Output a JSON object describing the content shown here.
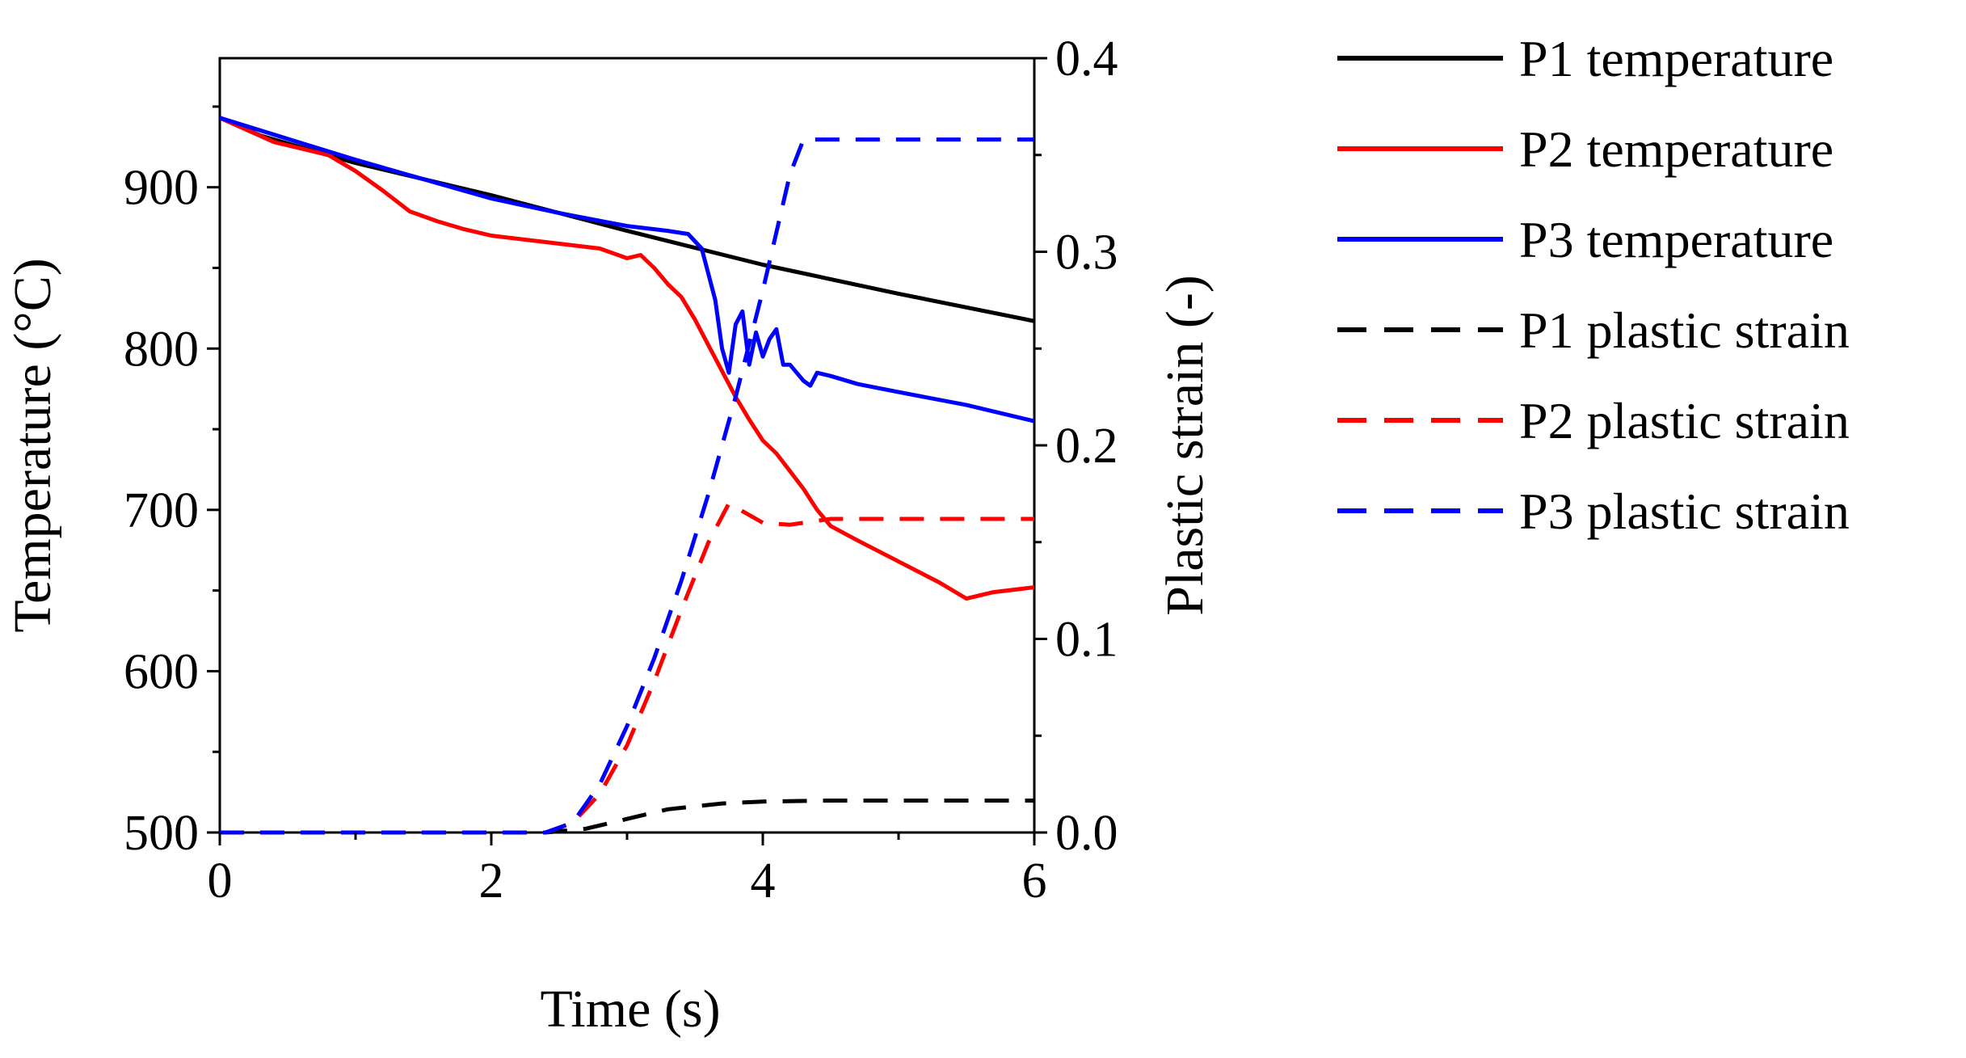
{
  "chart_data": {
    "type": "line",
    "title": "",
    "xlabel": "Time (s)",
    "ylabel": "Temperature (°C)",
    "y2label": "Plastic strain (-)",
    "xlim": [
      0,
      6
    ],
    "ylim": [
      500,
      980
    ],
    "y2lim": [
      0,
      0.4
    ],
    "xticks": [
      0,
      2,
      4,
      6
    ],
    "xtick_labels": [
      "0",
      "2",
      "4",
      "6"
    ],
    "yticks": [
      500,
      600,
      700,
      800,
      900
    ],
    "ytick_labels": [
      "500",
      "600",
      "700",
      "800",
      "900"
    ],
    "y2ticks": [
      0,
      0.1,
      0.2,
      0.3,
      0.4
    ],
    "y2tick_labels": [
      "0.0",
      "0.1",
      "0.2",
      "0.3",
      "0.4"
    ],
    "legend_position": "outside-right",
    "series": [
      {
        "name": "P1 temperature",
        "axis": "left",
        "color": "#000000",
        "dash": "solid",
        "x": [
          0,
          0.3,
          1,
          2,
          3,
          4,
          5,
          6
        ],
        "y": [
          943,
          932,
          915,
          895,
          873,
          852,
          834,
          817
        ]
      },
      {
        "name": "P2 temperature",
        "axis": "left",
        "color": "#ff0000",
        "dash": "solid",
        "x": [
          0,
          0.4,
          0.8,
          1.0,
          1.2,
          1.4,
          1.6,
          1.8,
          2.0,
          2.4,
          2.8,
          3.0,
          3.1,
          3.2,
          3.3,
          3.4,
          3.5,
          3.6,
          3.7,
          3.8,
          3.9,
          4.0,
          4.1,
          4.2,
          4.3,
          4.4,
          4.5,
          4.7,
          5.0,
          5.3,
          5.5,
          5.7,
          6.0
        ],
        "y": [
          943,
          928,
          920,
          910,
          898,
          885,
          879,
          874,
          870,
          866,
          862,
          856,
          858,
          850,
          840,
          832,
          818,
          802,
          786,
          770,
          756,
          743,
          735,
          724,
          713,
          700,
          690,
          681,
          668,
          655,
          645,
          649,
          652
        ]
      },
      {
        "name": "P3 temperature",
        "axis": "left",
        "color": "#0000ff",
        "dash": "solid",
        "x": [
          0,
          0.5,
          1,
          1.5,
          2,
          2.5,
          3,
          3.3,
          3.45,
          3.55,
          3.65,
          3.7,
          3.75,
          3.8,
          3.85,
          3.9,
          3.95,
          4.0,
          4.05,
          4.1,
          4.15,
          4.2,
          4.25,
          4.3,
          4.35,
          4.4,
          4.5,
          4.7,
          5,
          5.5,
          6
        ],
        "y": [
          943,
          930,
          917,
          905,
          893,
          884,
          876,
          873,
          871,
          862,
          830,
          800,
          785,
          815,
          823,
          790,
          810,
          795,
          806,
          812,
          790,
          790,
          785,
          780,
          777,
          785,
          783,
          778,
          773,
          765,
          755
        ]
      },
      {
        "name": "P1 plastic strain",
        "axis": "right",
        "color": "#000000",
        "dash": "dashed",
        "x": [
          0,
          2.4,
          2.7,
          3.0,
          3.3,
          3.7,
          4.0,
          4.5,
          5,
          6
        ],
        "y": [
          0,
          0,
          0.002,
          0.007,
          0.012,
          0.015,
          0.016,
          0.0165,
          0.0165,
          0.0165
        ]
      },
      {
        "name": "P2 plastic strain",
        "axis": "right",
        "color": "#ff0000",
        "dash": "dashed",
        "x": [
          0,
          2.4,
          2.6,
          2.8,
          3.0,
          3.2,
          3.4,
          3.6,
          3.75,
          3.9,
          4.0,
          4.2,
          4.5,
          5,
          6
        ],
        "y": [
          0,
          0,
          0.005,
          0.02,
          0.045,
          0.078,
          0.115,
          0.15,
          0.17,
          0.164,
          0.16,
          0.159,
          0.162,
          0.162,
          0.162
        ]
      },
      {
        "name": "P3 plastic strain",
        "axis": "right",
        "color": "#0000ff",
        "dash": "dashed",
        "x": [
          0,
          2.4,
          2.6,
          2.8,
          3.0,
          3.2,
          3.4,
          3.6,
          3.8,
          4.0,
          4.2,
          4.3,
          4.5,
          5,
          6
        ],
        "y": [
          0,
          0,
          0.005,
          0.025,
          0.055,
          0.09,
          0.13,
          0.175,
          0.225,
          0.28,
          0.34,
          0.358,
          0.358,
          0.358,
          0.358
        ]
      }
    ]
  }
}
